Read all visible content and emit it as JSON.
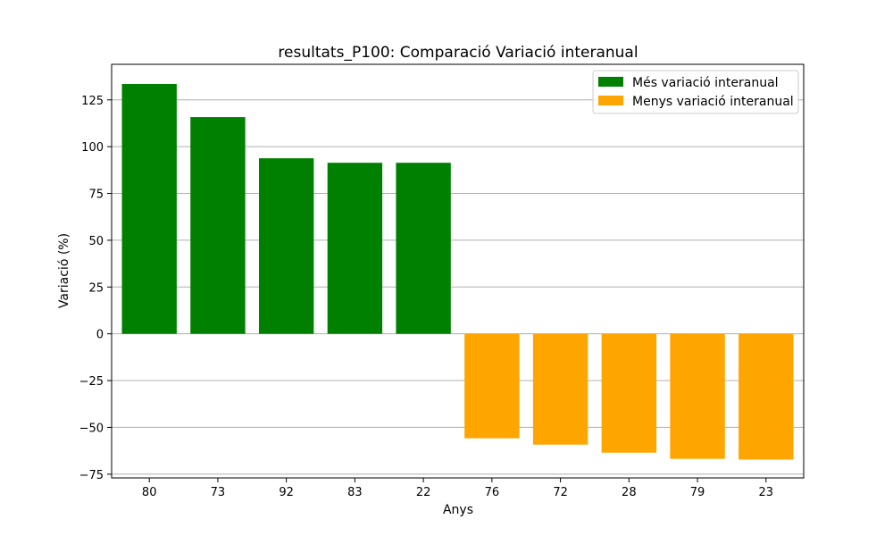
{
  "chart_data": {
    "type": "bar",
    "title": "resultats_P100: Comparació Variació interanual",
    "xlabel": "Anys",
    "ylabel": "Variació (%)",
    "categories": [
      "80",
      "73",
      "92",
      "83",
      "22",
      "76",
      "72",
      "28",
      "79",
      "23"
    ],
    "values": [
      133.5,
      115.8,
      93.8,
      91.4,
      91.4,
      -55.8,
      -59.2,
      -63.5,
      -66.8,
      -67.2
    ],
    "groups": [
      "high",
      "high",
      "high",
      "high",
      "high",
      "low",
      "low",
      "low",
      "low",
      "low"
    ],
    "series": [
      {
        "key": "high",
        "name": "Més variació interanual",
        "color": "#008000"
      },
      {
        "key": "low",
        "name": "Menys variació interanual",
        "color": "#ffa500"
      }
    ],
    "ylim": [
      -77,
      144
    ],
    "yticks": [
      -75,
      -50,
      -25,
      0,
      25,
      50,
      75,
      100,
      125
    ],
    "grid": "y",
    "legend_position": "top-right"
  }
}
